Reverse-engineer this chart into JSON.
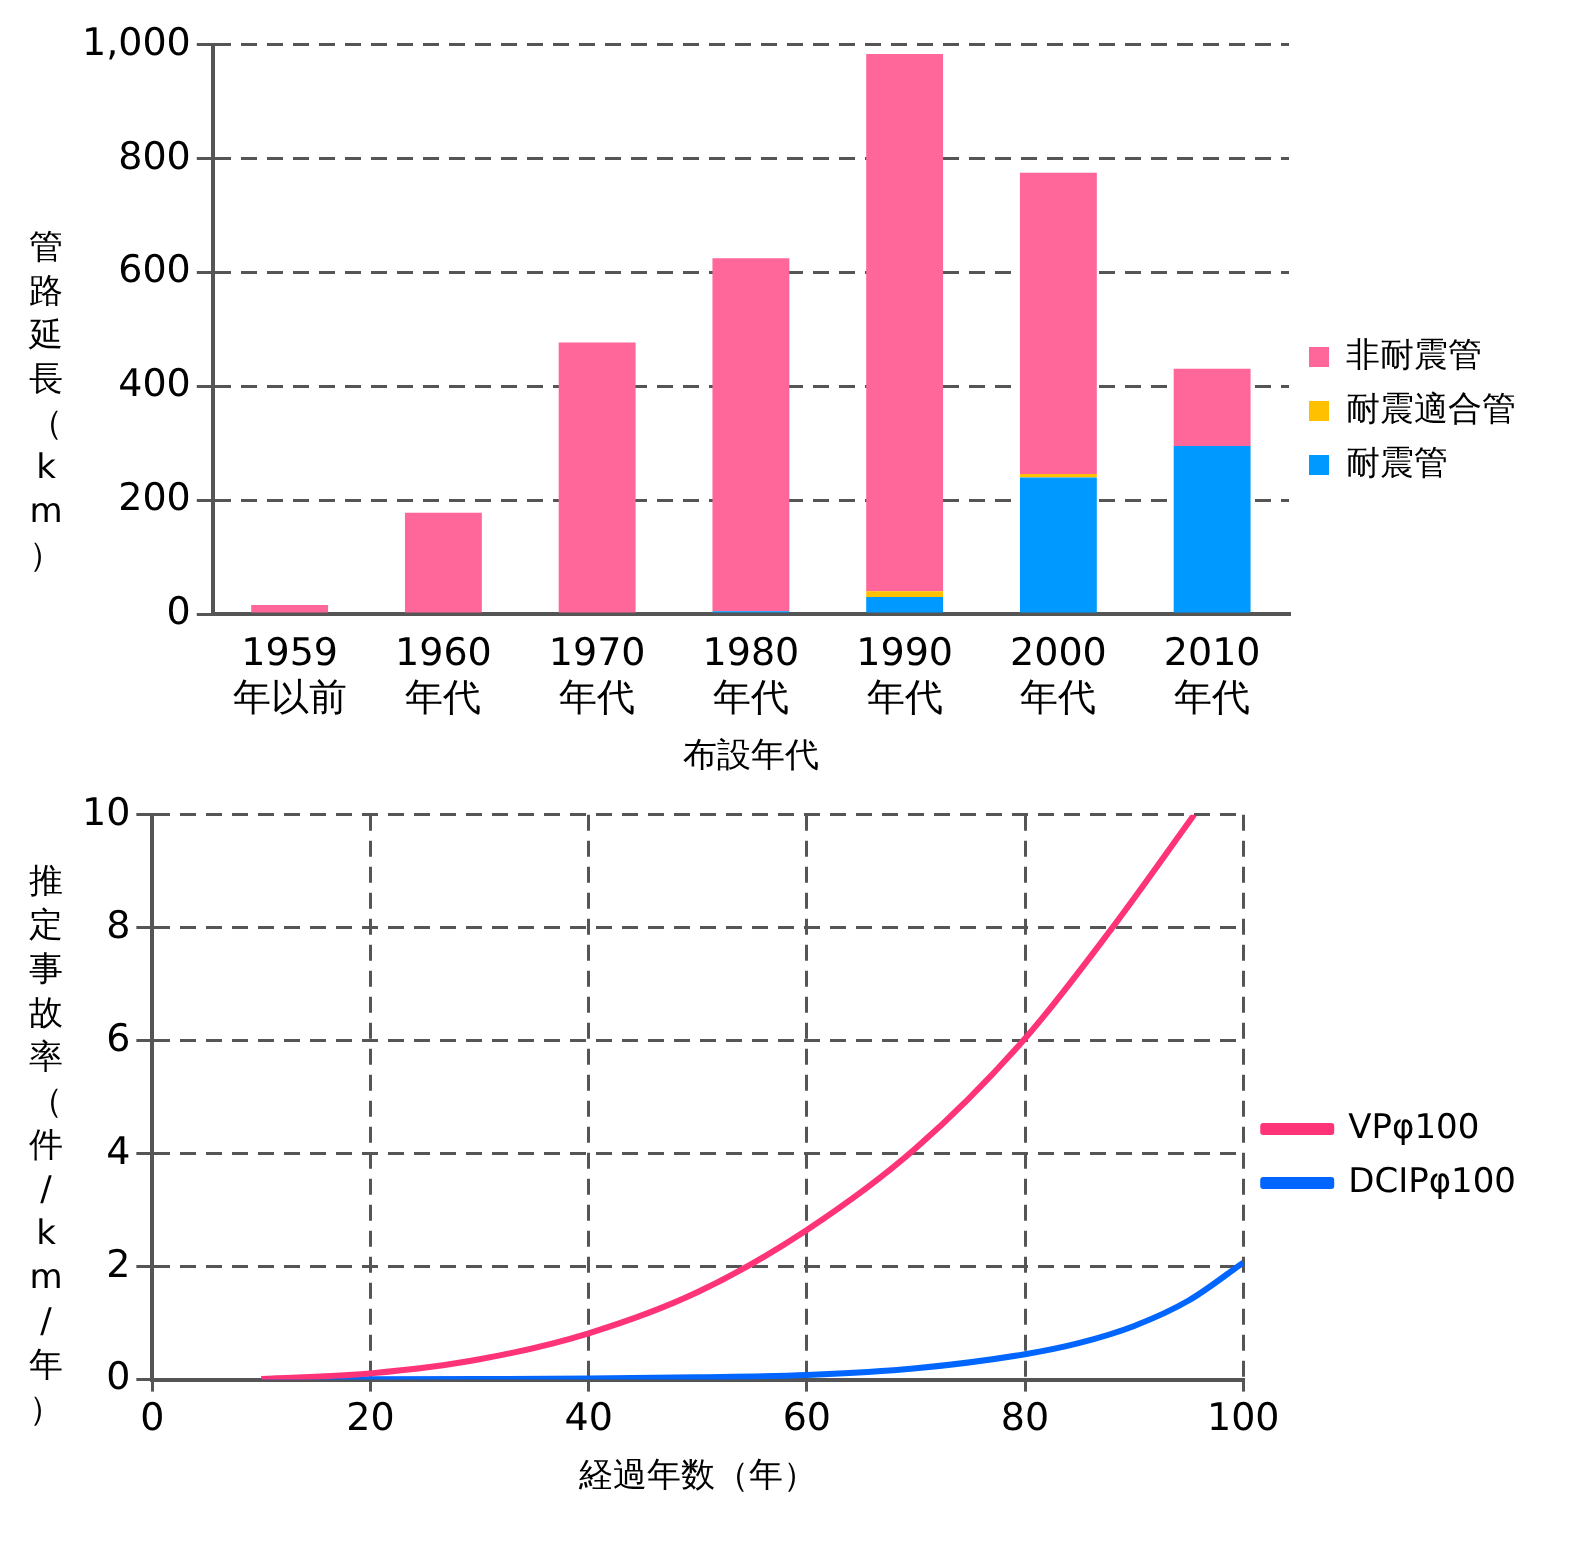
{
  "chart_data": [
    {
      "type": "bar",
      "stacked": true,
      "xlabel": "布設年代",
      "ylabel": "管路延長（km）",
      "categories": [
        "1959年以前",
        "1960年代",
        "1970年代",
        "1980年代",
        "1990年代",
        "2000年代",
        "2010年代"
      ],
      "series": [
        {
          "name": "耐震管",
          "color": "#0099ff",
          "values": [
            0,
            0,
            0,
            5,
            30,
            240,
            295
          ]
        },
        {
          "name": "耐震適合管",
          "color": "#ffc000",
          "values": [
            0,
            0,
            0,
            0,
            10,
            6,
            0
          ]
        },
        {
          "name": "非耐震管",
          "color": "#ff6699",
          "values": [
            16,
            178,
            477,
            620,
            944,
            529,
            136
          ]
        }
      ],
      "ylim": [
        0,
        1000
      ],
      "yticks": [
        0,
        {
          "value": 200,
          "label": "200"
        },
        {
          "value": 400,
          "label": "400"
        },
        {
          "value": 600,
          "label": "600"
        },
        {
          "value": 800,
          "label": "800"
        },
        {
          "value": 1000,
          "label": "1,000"
        }
      ],
      "grid": "y",
      "legend": "right"
    },
    {
      "type": "line",
      "xlabel": "経過年数（年）",
      "ylabel": "推定事故率（件/km/年）",
      "marker": "none",
      "line_style": "solid",
      "series": [
        {
          "name": "VPφ100",
          "color": "#ff3377",
          "x": [
            10,
            20,
            30,
            40,
            50,
            60,
            70,
            80,
            88,
            95.5
          ],
          "values": [
            0.01,
            0.11,
            0.36,
            0.82,
            1.55,
            2.65,
            4.1,
            6.04,
            8.0,
            10
          ]
        },
        {
          "name": "DCIPφ100",
          "color": "#0066ff",
          "x": [
            10,
            30,
            40,
            50,
            60,
            70,
            80,
            85,
            90,
            95,
            100
          ],
          "values": [
            0,
            0.01,
            0.02,
            0.04,
            0.08,
            0.2,
            0.45,
            0.65,
            0.95,
            1.4,
            2.07
          ]
        }
      ],
      "xlim": [
        0,
        100
      ],
      "xticks": [
        0,
        20,
        40,
        60,
        80,
        100
      ],
      "ylim": [
        0,
        10
      ],
      "yticks": [
        0,
        2,
        4,
        6,
        8,
        10
      ],
      "grid": true,
      "legend": "right"
    }
  ]
}
